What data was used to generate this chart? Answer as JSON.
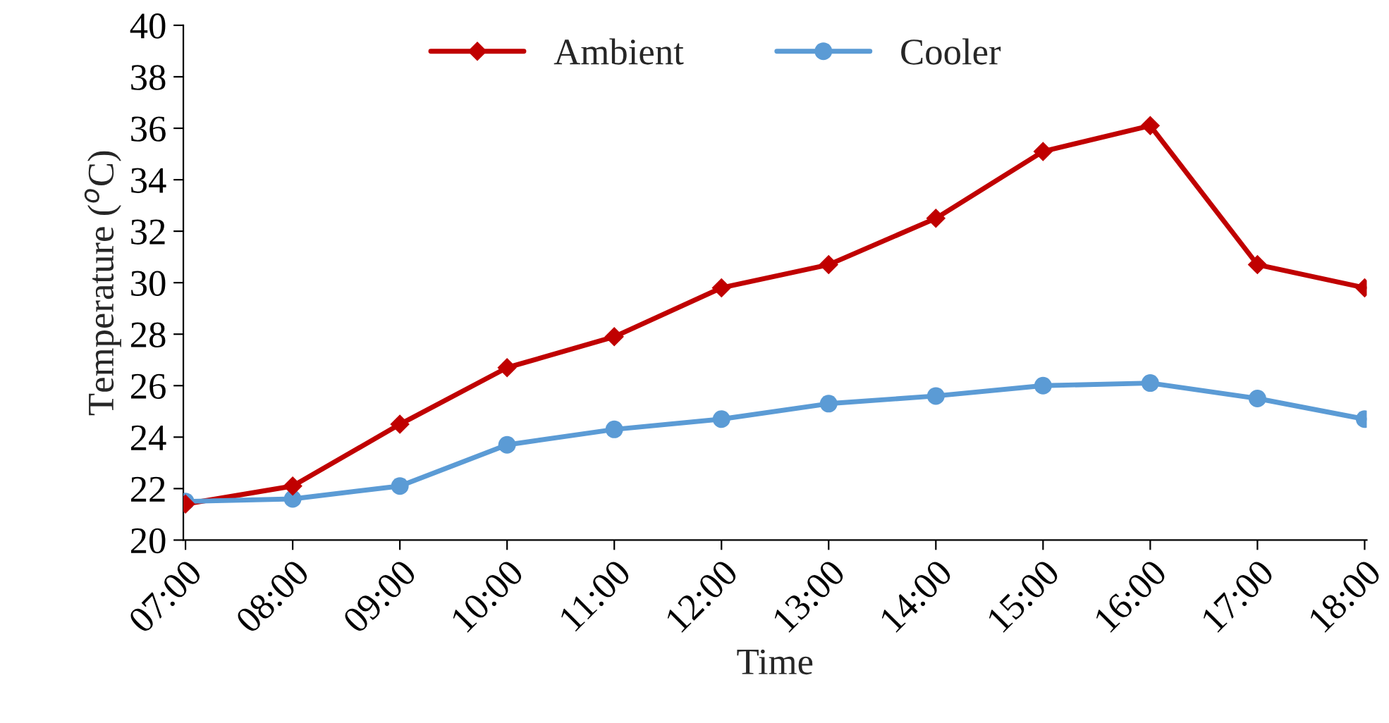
{
  "chart_data": {
    "type": "line",
    "xlabel": "Time",
    "ylabel": "Temperature ($^{o}$C)",
    "categories": [
      "07:00",
      "08:00",
      "09:00",
      "10:00",
      "11:00",
      "12:00",
      "13:00",
      "14:00",
      "15:00",
      "16:00",
      "17:00",
      "18:00"
    ],
    "series": [
      {
        "name": "Ambient",
        "color": "#c00000",
        "marker": "diamond",
        "values": [
          21.4,
          22.1,
          24.5,
          26.7,
          27.9,
          29.8,
          30.7,
          32.5,
          35.1,
          36.1,
          30.7,
          29.8
        ]
      },
      {
        "name": "Cooler",
        "color": "#5b9bd5",
        "marker": "circle",
        "values": [
          21.5,
          21.6,
          22.1,
          23.7,
          24.3,
          24.7,
          25.3,
          25.6,
          26.0,
          26.1,
          25.5,
          24.7
        ]
      }
    ],
    "ylim": [
      20,
      40
    ],
    "yticks": [
      20,
      22,
      24,
      26,
      28,
      30,
      32,
      34,
      36,
      38,
      40
    ],
    "grid": false,
    "legend": "top",
    "line_style": "solid"
  }
}
